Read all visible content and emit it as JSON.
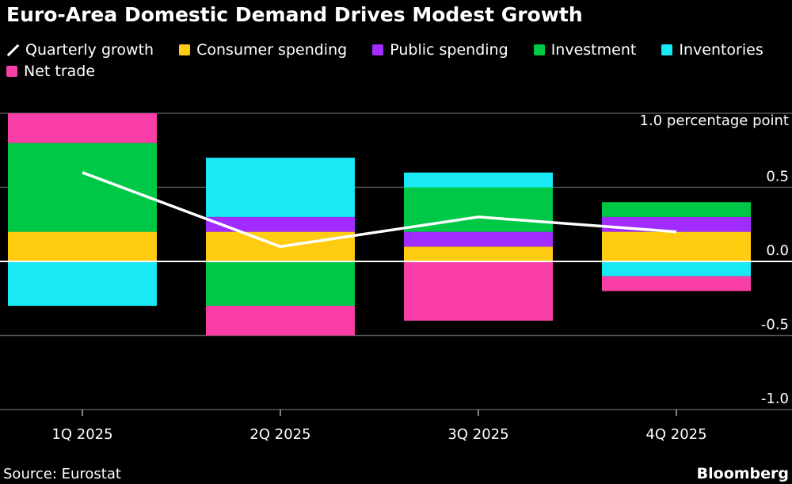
{
  "chart_data": {
    "type": "bar",
    "stacked": true,
    "title": "Euro-Area Domestic Demand Drives Modest Growth",
    "unit_label": "1.0 percentage point",
    "categories": [
      "1Q 2025",
      "2Q 2025",
      "3Q 2025",
      "4Q 2025"
    ],
    "ylim": [
      -1.0,
      1.0
    ],
    "yticks": [
      1.0,
      0.5,
      0.0,
      -0.5,
      -1.0
    ],
    "ytick_labels": [
      "",
      "0.5",
      "0.0",
      "-0.5",
      "-1.0"
    ],
    "grid": true,
    "legend_position": "top",
    "series": [
      {
        "name": "Consumer spending",
        "color": "#ffcc11",
        "values": [
          0.2,
          0.2,
          0.1,
          0.2
        ]
      },
      {
        "name": "Public spending",
        "color": "#a22cff",
        "values": [
          0.0,
          0.1,
          0.1,
          0.1
        ]
      },
      {
        "name": "Investment",
        "color": "#00c847",
        "values": [
          0.6,
          -0.3,
          0.3,
          0.1
        ]
      },
      {
        "name": "Inventories",
        "color": "#19e8f5",
        "values": [
          -0.3,
          0.4,
          0.1,
          -0.1
        ]
      },
      {
        "name": "Net trade",
        "color": "#fa3ea8",
        "values": [
          0.2,
          -0.2,
          -0.4,
          -0.1
        ]
      }
    ],
    "line": {
      "name": "Quarterly growth",
      "color": "#ffffff",
      "values": [
        0.6,
        0.1,
        0.3,
        0.2
      ]
    },
    "source": "Source: Eurostat",
    "brand": "Bloomberg"
  }
}
